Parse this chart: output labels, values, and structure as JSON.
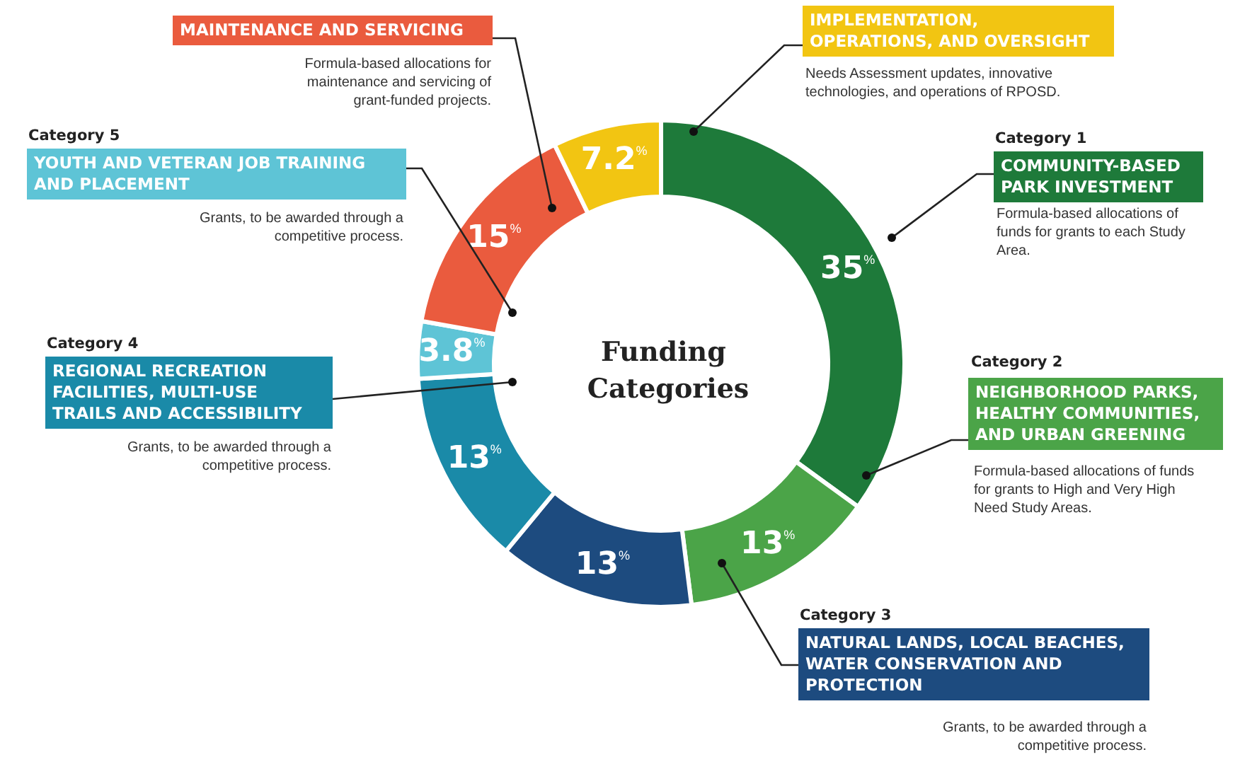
{
  "chart_data": {
    "type": "donut",
    "title": "Funding Categories",
    "categories": [
      "COMMUNITY-BASED PARK INVESTMENT",
      "NEIGHBORHOOD PARKS, HEALTHY COMMUNITIES, AND URBAN GREENING",
      "NATURAL LANDS, LOCAL BEACHES, WATER CONSERVATION AND PROTECTION",
      "REGIONAL RECREATION FACILITIES, MULTI-USE TRAILS AND ACCESSIBILITY",
      "YOUTH AND VETERAN JOB TRAINING AND PLACEMENT",
      "MAINTENANCE AND SERVICING",
      "IMPLEMENTATION, OPERATIONS, AND OVERSIGHT"
    ],
    "values": [
      35,
      13,
      13,
      13,
      3.8,
      15,
      7.2
    ],
    "value_labels": [
      "35%",
      "13%",
      "13%",
      "13%",
      "3.8%",
      "15%",
      "7.2%"
    ],
    "colors": [
      "#1e7a3a",
      "#4ba448",
      "#1d4b7f",
      "#1a8aa8",
      "#5ec4d6",
      "#ea5b3e",
      "#f2c512"
    ],
    "annotations": [
      "Category 1",
      "Formula-based allocations of funds for grants to each Study Area.",
      "Category 2",
      "Formula-based allocations of funds for grants to High and Very High Need Study Areas.",
      "Category 3",
      "Grants, to be awarded through a competitive process.",
      "Category 4",
      "Grants, to be awarded through a competitive process.",
      "Category 5",
      "Grants, to be awarded through a competitive process.",
      "Formula-based allocations for maintenance and servicing of grant-funded projects.",
      "Needs Assessment updates, innovative technologies, and operations of RPOSD."
    ],
    "legend": "top left"
  }
}
